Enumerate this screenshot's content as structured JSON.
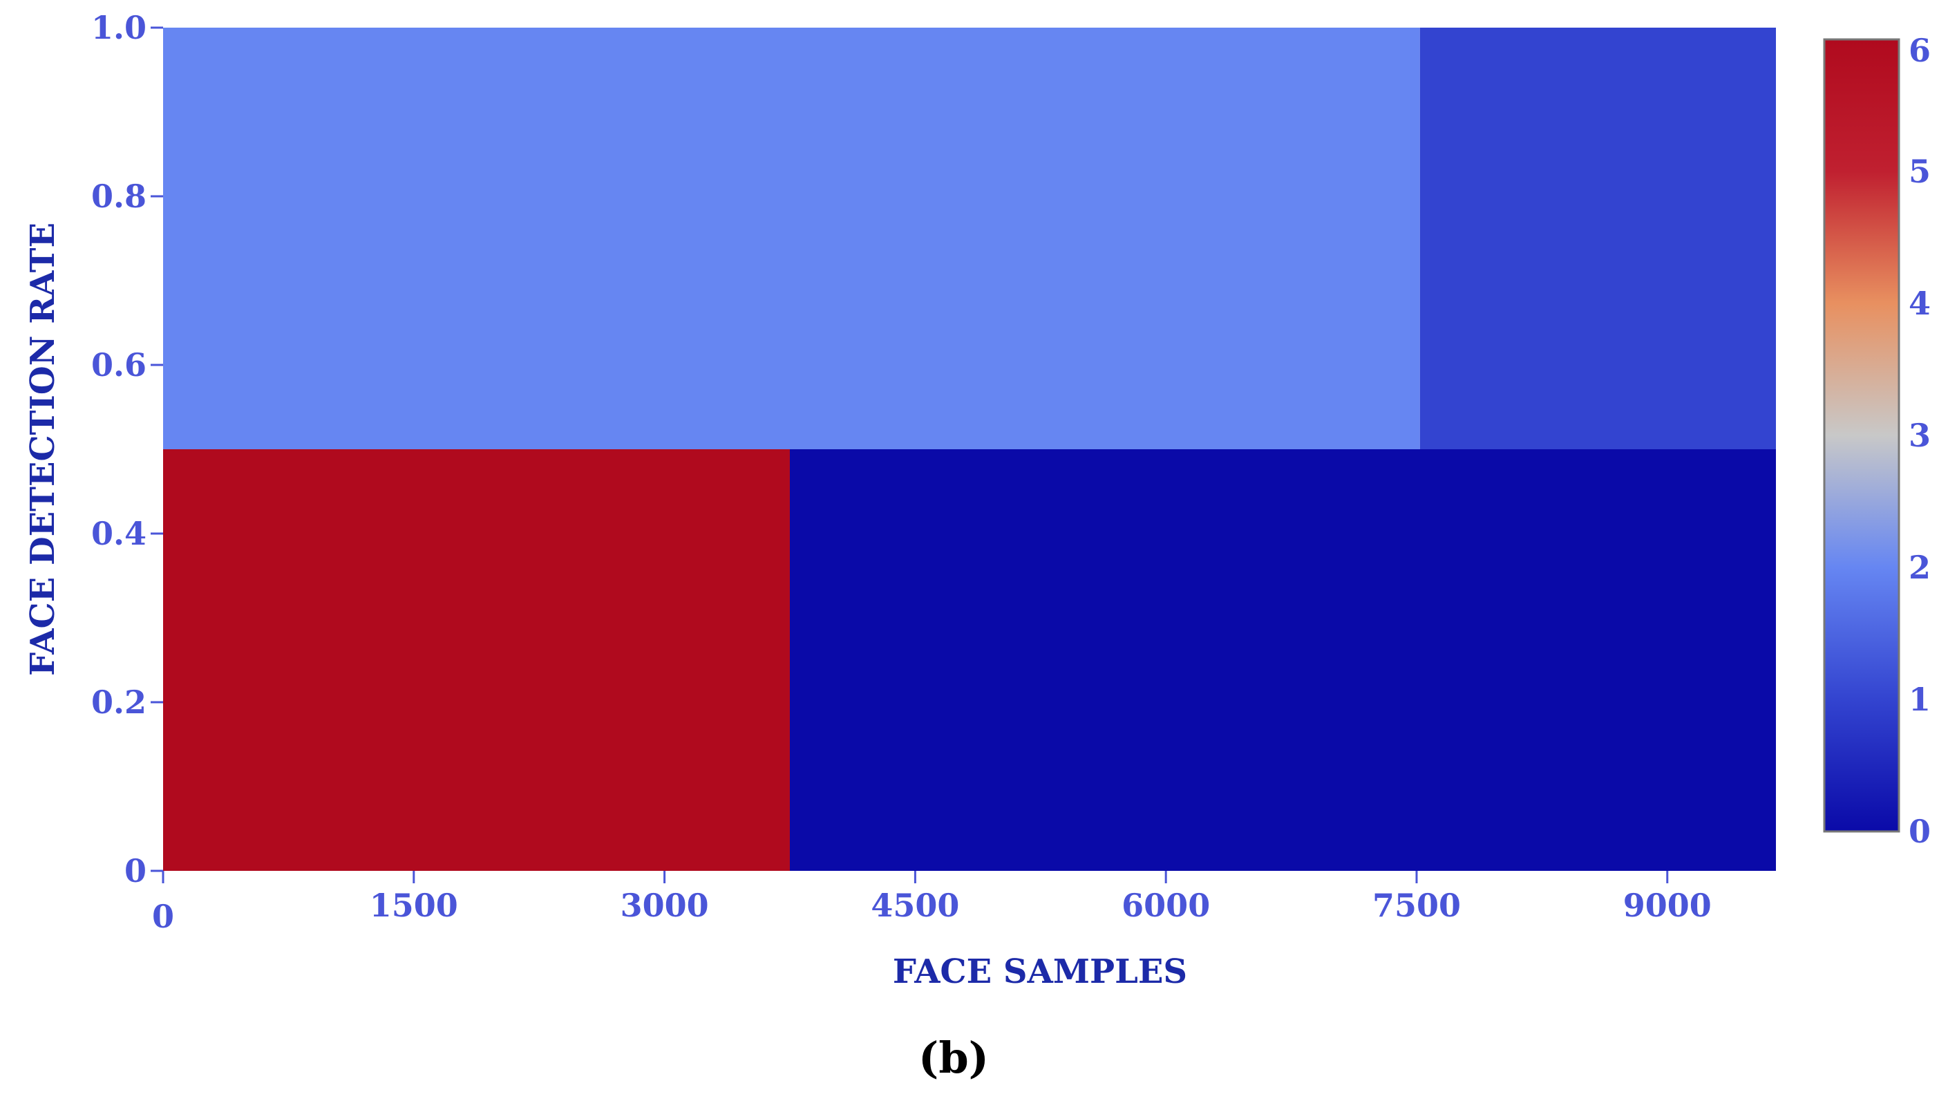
{
  "chart_data": {
    "type": "heatmap",
    "caption": "(b)",
    "xlabel": "FACE SAMPLES",
    "ylabel": "FACE DETECTION RATE",
    "xlim": [
      0,
      9650
    ],
    "ylim": [
      0,
      1.0
    ],
    "x_ticks": [
      "0",
      "1500",
      "3000",
      "4500",
      "6000",
      "7500",
      "9000"
    ],
    "x_tick_values": [
      0,
      1500,
      3000,
      4500,
      6000,
      7500,
      9000
    ],
    "y_ticks": [
      "0",
      "0.2",
      "0.4",
      "0.6",
      "0.8",
      "1.0"
    ],
    "y_tick_values": [
      0,
      0.2,
      0.4,
      0.6,
      0.8,
      1.0
    ],
    "cells": [
      {
        "x0": 0,
        "x1": 3750,
        "y0": 0,
        "y1": 0.5,
        "value": 6
      },
      {
        "x0": 3750,
        "x1": 9650,
        "y0": 0,
        "y1": 0.5,
        "value": 0
      },
      {
        "x0": 0,
        "x1": 7520,
        "y0": 0.5,
        "y1": 1.0,
        "value": 2
      },
      {
        "x0": 7520,
        "x1": 9650,
        "y0": 0.5,
        "y1": 1.0,
        "value": 1
      }
    ],
    "colorbar": {
      "min": 0,
      "max": 6,
      "ticks": [
        "0",
        "1",
        "2",
        "3",
        "4",
        "5",
        "6"
      ],
      "tick_values": [
        0,
        1,
        2,
        3,
        4,
        5,
        6
      ],
      "colorscale": [
        "#0a0aa8",
        "#3344d0",
        "#6686f2",
        "#c8c8c8",
        "#e89060",
        "#c02030",
        "#b00a1e"
      ]
    },
    "grid": false
  }
}
